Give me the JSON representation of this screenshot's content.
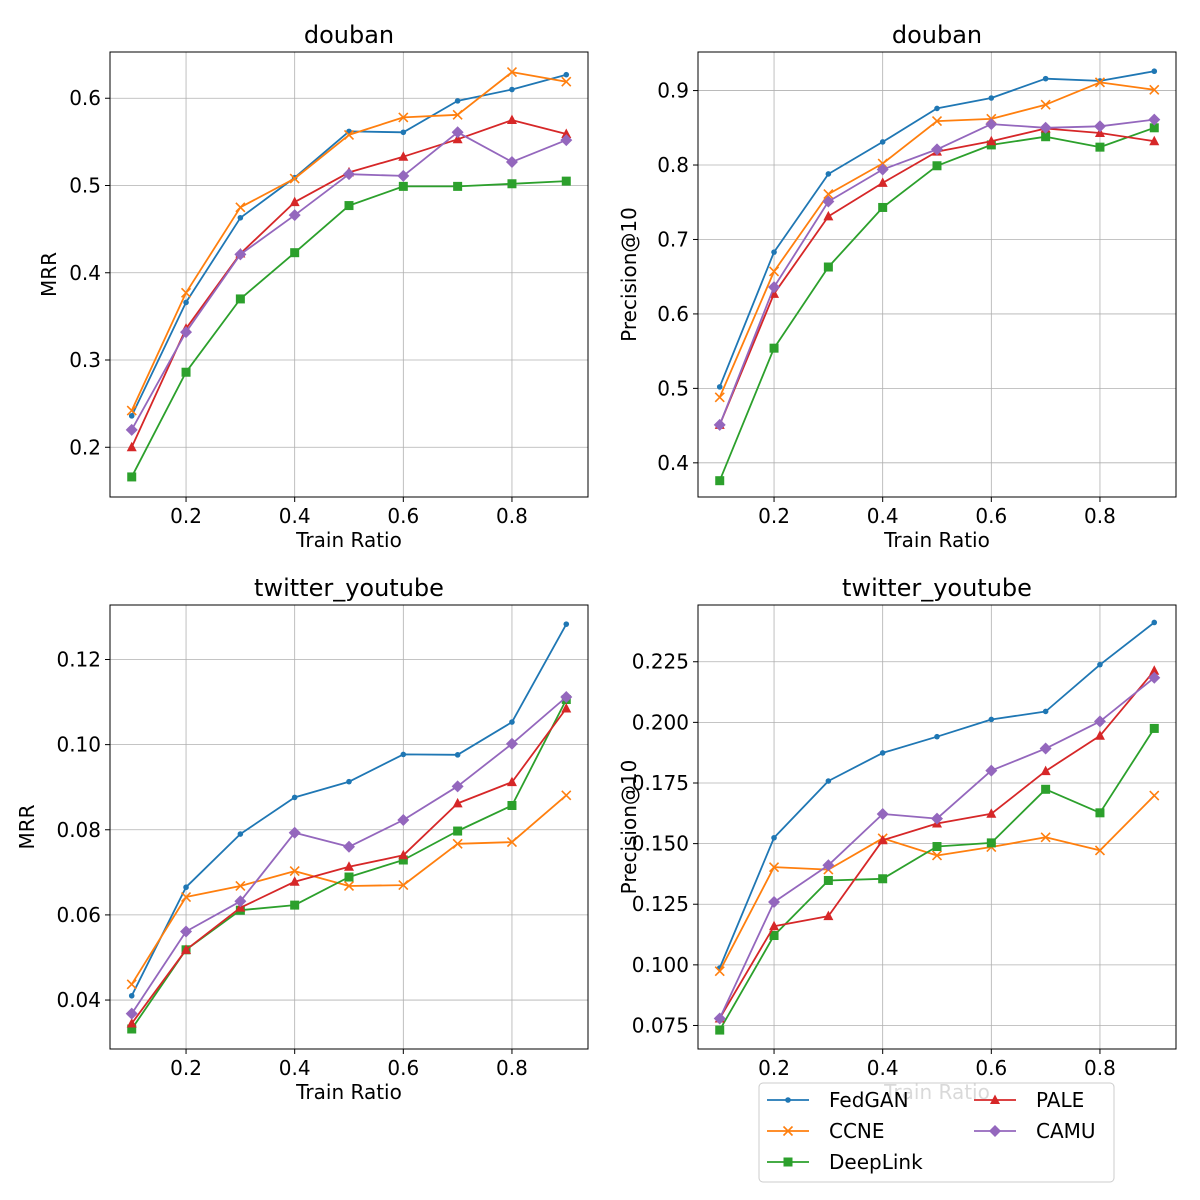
{
  "colors": {
    "FedGAN": "#1f77b4",
    "CCNE": "#ff7f0e",
    "DeepLink": "#2ca02c",
    "PALE": "#d62728",
    "CAMU": "#9467bd"
  },
  "legend": {
    "placement": "bottom-right, overlapping last subplot",
    "entries": [
      {
        "name": "FedGAN",
        "marker": "dot"
      },
      {
        "name": "CCNE",
        "marker": "x"
      },
      {
        "name": "DeepLink",
        "marker": "square"
      },
      {
        "name": "PALE",
        "marker": "triangle"
      },
      {
        "name": "CAMU",
        "marker": "diamond"
      }
    ]
  },
  "chart_data": [
    {
      "type": "line",
      "title": "douban",
      "xlabel": "Train Ratio",
      "ylabel": "MRR",
      "grid": true,
      "xlim": [
        0.06,
        0.94
      ],
      "ylim": [
        0.143,
        0.653
      ],
      "xticks": [
        0.2,
        0.4,
        0.6,
        0.8
      ],
      "xtick_labels": [
        "0.2",
        "0.4",
        "0.6",
        "0.8"
      ],
      "yticks": [
        0.2,
        0.3,
        0.4,
        0.5,
        0.6
      ],
      "ytick_labels": [
        "0.2",
        "0.3",
        "0.4",
        "0.5",
        "0.6"
      ],
      "x": [
        0.1,
        0.2,
        0.3,
        0.4,
        0.5,
        0.6,
        0.7,
        0.8,
        0.9
      ],
      "series": [
        {
          "name": "FedGAN",
          "values": [
            0.236,
            0.366,
            0.463,
            0.509,
            0.562,
            0.561,
            0.597,
            0.61,
            0.627
          ]
        },
        {
          "name": "CCNE",
          "values": [
            0.242,
            0.377,
            0.475,
            0.508,
            0.558,
            0.578,
            0.581,
            0.63,
            0.619
          ]
        },
        {
          "name": "DeepLink",
          "values": [
            0.166,
            0.286,
            0.37,
            0.423,
            0.477,
            0.499,
            0.499,
            0.502,
            0.505
          ]
        },
        {
          "name": "PALE",
          "values": [
            0.2,
            0.336,
            0.422,
            0.481,
            0.515,
            0.533,
            0.553,
            0.575,
            0.559
          ]
        },
        {
          "name": "CAMU",
          "values": [
            0.22,
            0.332,
            0.421,
            0.466,
            0.513,
            0.511,
            0.561,
            0.527,
            0.552
          ]
        }
      ]
    },
    {
      "type": "line",
      "title": "douban",
      "xlabel": "Train Ratio",
      "ylabel": "Precision@10",
      "grid": true,
      "xlim": [
        0.06,
        0.94
      ],
      "ylim": [
        0.3541,
        0.9518
      ],
      "xticks": [
        0.2,
        0.4,
        0.6,
        0.8
      ],
      "xtick_labels": [
        "0.2",
        "0.4",
        "0.6",
        "0.8"
      ],
      "yticks": [
        0.4,
        0.5,
        0.6,
        0.7,
        0.8,
        0.9
      ],
      "ytick_labels": [
        "0.4",
        "0.5",
        "0.6",
        "0.7",
        "0.8",
        "0.9"
      ],
      "x": [
        0.1,
        0.2,
        0.3,
        0.4,
        0.5,
        0.6,
        0.7,
        0.8,
        0.9
      ],
      "series": [
        {
          "name": "FedGAN",
          "values": [
            0.502,
            0.683,
            0.788,
            0.831,
            0.876,
            0.89,
            0.916,
            0.913,
            0.926
          ]
        },
        {
          "name": "CCNE",
          "values": [
            0.488,
            0.657,
            0.761,
            0.802,
            0.859,
            0.862,
            0.881,
            0.911,
            0.901
          ]
        },
        {
          "name": "DeepLink",
          "values": [
            0.376,
            0.554,
            0.663,
            0.743,
            0.799,
            0.827,
            0.838,
            0.824,
            0.85
          ]
        },
        {
          "name": "PALE",
          "values": [
            0.451,
            0.627,
            0.731,
            0.776,
            0.818,
            0.832,
            0.849,
            0.843,
            0.832
          ]
        },
        {
          "name": "CAMU",
          "values": [
            0.451,
            0.636,
            0.751,
            0.794,
            0.821,
            0.855,
            0.85,
            0.852,
            0.861
          ]
        }
      ]
    },
    {
      "type": "line",
      "title": "twitter_youtube",
      "xlabel": "Train Ratio",
      "ylabel": "MRR",
      "grid": true,
      "xlim": [
        0.06,
        0.94
      ],
      "ylim": [
        0.0285,
        0.1328
      ],
      "xticks": [
        0.2,
        0.4,
        0.6,
        0.8
      ],
      "xtick_labels": [
        "0.2",
        "0.4",
        "0.6",
        "0.8"
      ],
      "yticks": [
        0.04,
        0.06,
        0.08,
        0.1,
        0.12
      ],
      "ytick_labels": [
        "0.04",
        "0.06",
        "0.08",
        "0.10",
        "0.12"
      ],
      "x": [
        0.1,
        0.2,
        0.3,
        0.4,
        0.5,
        0.6,
        0.7,
        0.8,
        0.9
      ],
      "series": [
        {
          "name": "FedGAN",
          "values": [
            0.041,
            0.0665,
            0.079,
            0.0876,
            0.0913,
            0.0977,
            0.0976,
            0.1053,
            0.1283
          ]
        },
        {
          "name": "CCNE",
          "values": [
            0.0437,
            0.0642,
            0.0668,
            0.0703,
            0.0668,
            0.067,
            0.0767,
            0.0771,
            0.0881
          ]
        },
        {
          "name": "DeepLink",
          "values": [
            0.0332,
            0.0518,
            0.0611,
            0.0623,
            0.0689,
            0.0729,
            0.0797,
            0.0857,
            0.1106
          ]
        },
        {
          "name": "PALE",
          "values": [
            0.0345,
            0.0518,
            0.0617,
            0.0678,
            0.0713,
            0.074,
            0.0862,
            0.0912,
            0.1085
          ]
        },
        {
          "name": "CAMU",
          "values": [
            0.0368,
            0.0561,
            0.0632,
            0.0793,
            0.076,
            0.0823,
            0.0902,
            0.1002,
            0.1112
          ]
        }
      ]
    },
    {
      "type": "line",
      "title": "twitter_youtube",
      "xlabel": "Train Ratio",
      "ylabel": "Precision@10",
      "grid": true,
      "xlim": [
        0.06,
        0.94
      ],
      "ylim": [
        0.0653,
        0.2484
      ],
      "xticks": [
        0.2,
        0.4,
        0.6,
        0.8
      ],
      "xtick_labels": [
        "0.2",
        "0.4",
        "0.6",
        "0.8"
      ],
      "yticks": [
        0.075,
        0.1,
        0.125,
        0.15,
        0.175,
        0.2,
        0.225
      ],
      "ytick_labels": [
        "0.075",
        "0.100",
        "0.125",
        "0.150",
        "0.175",
        "0.200",
        "0.225"
      ],
      "x": [
        0.1,
        0.2,
        0.3,
        0.4,
        0.5,
        0.6,
        0.7,
        0.8,
        0.9
      ],
      "series": [
        {
          "name": "FedGAN",
          "values": [
            0.0987,
            0.1524,
            0.1758,
            0.1874,
            0.1941,
            0.2012,
            0.2045,
            0.2238,
            0.2412
          ]
        },
        {
          "name": "CCNE",
          "values": [
            0.0974,
            0.1403,
            0.1393,
            0.1522,
            0.1451,
            0.1486,
            0.1526,
            0.1472,
            0.1698
          ]
        },
        {
          "name": "DeepLink",
          "values": [
            0.0731,
            0.1121,
            0.1348,
            0.1355,
            0.1488,
            0.1503,
            0.1724,
            0.1627,
            0.1975
          ]
        },
        {
          "name": "PALE",
          "values": [
            0.0779,
            0.1159,
            0.1201,
            0.1514,
            0.1583,
            0.1623,
            0.1799,
            0.1945,
            0.2213
          ]
        },
        {
          "name": "CAMU",
          "values": [
            0.0779,
            0.1259,
            0.1411,
            0.1622,
            0.1603,
            0.1801,
            0.1892,
            0.2004,
            0.2184
          ]
        }
      ]
    }
  ]
}
